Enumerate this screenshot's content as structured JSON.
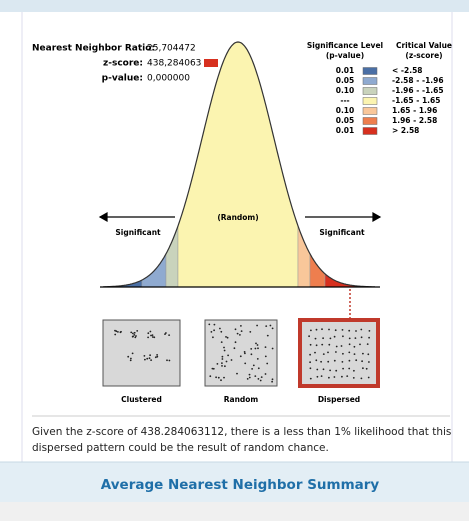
{
  "stats": {
    "ratio_label": "Nearest Neighbor Ratio:",
    "ratio_value": "25,704472",
    "z_label": "z-score:",
    "z_value": "438,284063",
    "p_label": "p-value:",
    "p_value": "0,000000"
  },
  "legend": {
    "significance_header": "Significance Level",
    "significance_sub": "(p-value)",
    "critical_header": "Critical Value",
    "critical_sub": "(z-score)",
    "rows": [
      {
        "p": "0.01",
        "z": "< -2.58",
        "color": "#4a6fa5"
      },
      {
        "p": "0.05",
        "z": "-2.58 - -1.96",
        "color": "#8faad0"
      },
      {
        "p": "0.10",
        "z": "-1.96 - -1.65",
        "color": "#c9d3bc"
      },
      {
        "p": "---",
        "z": "-1.65 - 1.65",
        "color": "#fbf4b0"
      },
      {
        "p": "0.10",
        "z": "1.65 - 1.96",
        "color": "#f9c79a"
      },
      {
        "p": "0.05",
        "z": "1.96 - 2.58",
        "color": "#ee7e4e"
      },
      {
        "p": "0.01",
        "z": "> 2.58",
        "color": "#d7301f"
      }
    ]
  },
  "curve": {
    "left_label": "Significant",
    "center_label": "(Random)",
    "right_label": "Significant"
  },
  "patterns": [
    "Clustered",
    "Random",
    "Dispersed"
  ],
  "interpretation": "Given the z-score of 438.284063112, there is a less than 1% likelihood that this dispersed pattern could be the result of random chance.",
  "footer": {
    "title": "Average Nearest Neighbor Summary"
  }
}
